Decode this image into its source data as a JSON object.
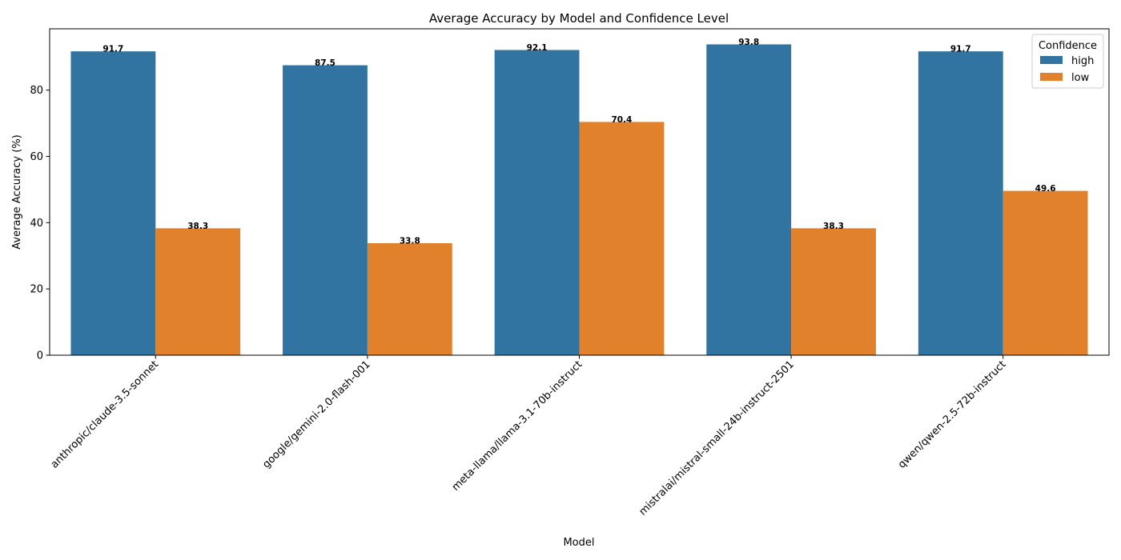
{
  "chart_data": {
    "type": "bar",
    "title": "Average Accuracy by Model and Confidence Level",
    "xlabel": "Model",
    "ylabel": "Average Accuracy (%)",
    "ylim": [
      0,
      98.5
    ],
    "yticks": [
      0,
      20,
      40,
      60,
      80
    ],
    "grid": false,
    "categories": [
      "anthropic/claude-3.5-sonnet",
      "google/gemini-2.0-flash-001",
      "meta-llama/llama-3.1-70b-instruct",
      "mistralai/mistral-small-24b-instruct-2501",
      "qwen/qwen-2.5-72b-instruct"
    ],
    "series": [
      {
        "name": "high",
        "color": "#3274a1",
        "values": [
          91.7,
          87.5,
          92.1,
          93.8,
          91.7
        ]
      },
      {
        "name": "low",
        "color": "#e1812c",
        "values": [
          38.3,
          33.8,
          70.4,
          38.3,
          49.6
        ]
      }
    ],
    "legend": {
      "title": "Confidence",
      "position": "top-right"
    },
    "label_format": "one-decimal"
  }
}
